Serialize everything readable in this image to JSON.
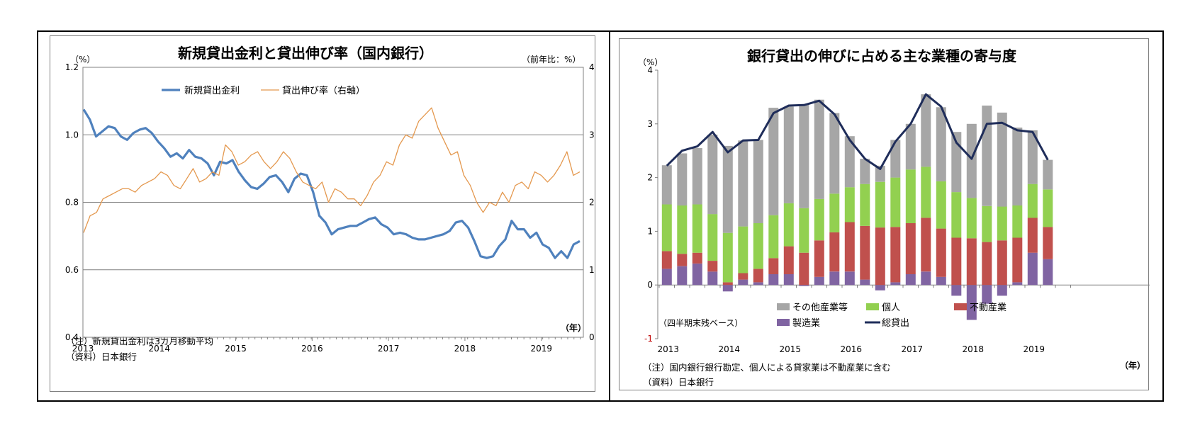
{
  "left": {
    "title": "新規貸出金利と貸出伸び率（国内銀行）",
    "unit_left": "（%）",
    "unit_right": "（前年比：%）",
    "year_unit": "（年）",
    "note": "（注）新規貸出金利は3カ月移動平均",
    "source": "（資料）日本銀行"
  },
  "right": {
    "title": "銀行貸出の伸びに占める主な業種の寄与度",
    "unit_left": "（%）",
    "year_unit": "（年）",
    "basis": "（四半期末残ベース）",
    "note": "（注）国内銀行銀行勘定、個人による貸家業は不動産業に含む",
    "source": "（資料）日本銀行"
  },
  "chart_data": [
    {
      "type": "line",
      "title": "新規貸出金利と貸出伸び率（国内銀行）",
      "x_ticks": [
        "2013",
        "2014",
        "2015",
        "2016",
        "2017",
        "2018",
        "2019"
      ],
      "x_range": [
        2013.0,
        2019.55
      ],
      "y_left_ticks": [
        "0.4",
        "0.6",
        "0.8",
        "1.0",
        "1.2"
      ],
      "y_right_ticks": [
        "0",
        "1",
        "2",
        "3",
        "4"
      ],
      "ylim": [
        0.4,
        1.2
      ],
      "y2lim": [
        0,
        4
      ],
      "grid": "horizontal",
      "legend": "top-center",
      "series": [
        {
          "name": "新規貸出金利",
          "axis": "left",
          "color": "#4f81bd",
          "values": [
            1.075,
            1.045,
            0.995,
            1.01,
            1.025,
            1.02,
            0.995,
            0.985,
            1.005,
            1.015,
            1.02,
            1.005,
            0.98,
            0.96,
            0.935,
            0.945,
            0.93,
            0.955,
            0.935,
            0.93,
            0.915,
            0.88,
            0.92,
            0.915,
            0.925,
            0.89,
            0.865,
            0.845,
            0.84,
            0.855,
            0.875,
            0.88,
            0.86,
            0.83,
            0.87,
            0.885,
            0.88,
            0.83,
            0.76,
            0.74,
            0.705,
            0.72,
            0.725,
            0.73,
            0.73,
            0.74,
            0.75,
            0.755,
            0.735,
            0.725,
            0.705,
            0.71,
            0.705,
            0.695,
            0.69,
            0.69,
            0.695,
            0.7,
            0.705,
            0.715,
            0.74,
            0.745,
            0.725,
            0.685,
            0.64,
            0.635,
            0.64,
            0.67,
            0.69,
            0.745,
            0.72,
            0.72,
            0.695,
            0.71,
            0.675,
            0.665,
            0.635,
            0.655,
            0.635,
            0.675,
            0.685
          ]
        },
        {
          "name": "貸出伸び率（右軸）",
          "axis": "right",
          "color": "#e4984e",
          "values": [
            1.55,
            1.8,
            1.85,
            2.05,
            2.1,
            2.15,
            2.2,
            2.2,
            2.15,
            2.25,
            2.3,
            2.35,
            2.45,
            2.4,
            2.25,
            2.2,
            2.35,
            2.5,
            2.3,
            2.35,
            2.45,
            2.4,
            2.85,
            2.75,
            2.55,
            2.6,
            2.7,
            2.75,
            2.6,
            2.5,
            2.6,
            2.75,
            2.65,
            2.45,
            2.3,
            2.25,
            2.2,
            2.3,
            2.0,
            2.2,
            2.15,
            2.05,
            2.05,
            1.95,
            2.1,
            2.3,
            2.4,
            2.6,
            2.55,
            2.85,
            3.0,
            2.95,
            3.2,
            3.3,
            3.4,
            3.1,
            2.9,
            2.7,
            2.75,
            2.4,
            2.25,
            2.0,
            1.85,
            2.0,
            1.95,
            2.15,
            2.0,
            2.25,
            2.3,
            2.2,
            2.45,
            2.4,
            2.3,
            2.4,
            2.55,
            2.75,
            2.4,
            2.45
          ]
        }
      ]
    },
    {
      "type": "bar",
      "stacked": true,
      "title": "銀行貸出の伸びに占める主な業種の寄与度",
      "x_ticks": [
        "2013",
        "2014",
        "2015",
        "2016",
        "2017",
        "2018",
        "2019"
      ],
      "ylim": [
        -1,
        4
      ],
      "y_ticks": [
        "-1",
        "0",
        "1",
        "2",
        "3",
        "4"
      ],
      "legend": "bottom-inside",
      "categories": [
        "2013Q1",
        "2013Q2",
        "2013Q3",
        "2013Q4",
        "2014Q1",
        "2014Q2",
        "2014Q3",
        "2014Q4",
        "2015Q1",
        "2015Q2",
        "2015Q3",
        "2015Q4",
        "2016Q1",
        "2016Q2",
        "2016Q3",
        "2016Q4",
        "2017Q1",
        "2017Q2",
        "2017Q3",
        "2017Q4",
        "2018Q1",
        "2018Q2",
        "2018Q3",
        "2018Q4",
        "2019Q1",
        "2019Q2",
        "2019Q3"
      ],
      "series": [
        {
          "name": "製造業",
          "color": "#8064a2",
          "values": [
            0.3,
            0.35,
            0.4,
            0.25,
            -0.12,
            0.1,
            0.05,
            0.2,
            0.2,
            -0.02,
            0.15,
            0.25,
            0.25,
            0.1,
            -0.1,
            0.05,
            0.2,
            0.25,
            0.15,
            -0.2,
            -0.65,
            -0.35,
            -0.2,
            0.05,
            0.6,
            0.48,
            0.0
          ]
        },
        {
          "name": "不動産業",
          "color": "#c0504d",
          "values": [
            0.33,
            0.23,
            0.2,
            0.2,
            0.05,
            0.12,
            0.25,
            0.3,
            0.52,
            0.6,
            0.68,
            0.73,
            0.92,
            1.0,
            1.07,
            1.03,
            0.95,
            1.0,
            0.9,
            0.88,
            0.87,
            0.8,
            0.83,
            0.83,
            0.65,
            0.6,
            0.0
          ]
        },
        {
          "name": "個人",
          "color": "#92d050",
          "values": [
            0.87,
            0.9,
            0.9,
            0.87,
            0.92,
            0.87,
            0.85,
            0.8,
            0.8,
            0.83,
            0.77,
            0.72,
            0.65,
            0.78,
            0.85,
            0.92,
            1.0,
            0.95,
            0.88,
            0.85,
            0.75,
            0.67,
            0.63,
            0.6,
            0.63,
            0.7,
            0.0
          ]
        },
        {
          "name": "その他産業等",
          "color": "#a6a6a6",
          "values": [
            0.73,
            0.97,
            1.05,
            1.48,
            1.62,
            1.6,
            1.55,
            2.0,
            1.8,
            1.93,
            1.85,
            1.5,
            0.95,
            0.47,
            0.3,
            0.7,
            0.85,
            1.35,
            1.38,
            1.12,
            1.38,
            1.87,
            1.75,
            1.45,
            1.0,
            0.55,
            0.0
          ]
        }
      ],
      "line": {
        "name": "総貸出",
        "color": "#1f2d5a",
        "values": [
          2.22,
          2.5,
          2.58,
          2.85,
          2.47,
          2.69,
          2.7,
          3.2,
          3.34,
          3.35,
          3.43,
          3.18,
          2.7,
          2.35,
          2.16,
          2.67,
          3.0,
          3.55,
          3.32,
          2.65,
          2.35,
          3.0,
          3.02,
          2.88,
          2.85,
          2.33
        ]
      }
    }
  ]
}
